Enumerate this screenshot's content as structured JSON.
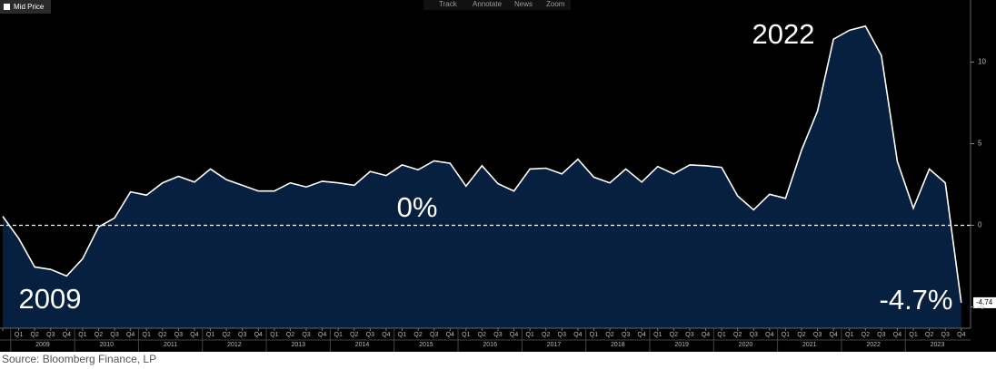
{
  "chart_data": {
    "type": "area",
    "legend": "Mid Price",
    "toolbar": [
      "Track",
      "Annotate",
      "News",
      "Zoom"
    ],
    "annotations": [
      {
        "text": "2022"
      },
      {
        "text": "0%"
      },
      {
        "text": "2009"
      },
      {
        "text": "-4.7%"
      }
    ],
    "source": "Source: Bloomberg Finance, LP",
    "categories": [
      null,
      "Q1",
      "Q2",
      "Q3",
      "Q4",
      "Q1",
      "Q2",
      "Q3",
      "Q4",
      "Q1",
      "Q2",
      "Q3",
      "Q4",
      "Q1",
      "Q2",
      "Q3",
      "Q4",
      "Q1",
      "Q2",
      "Q3",
      "Q4",
      "Q1",
      "Q2",
      "Q3",
      "Q4",
      "Q1",
      "Q2",
      "Q3",
      "Q4",
      "Q1",
      "Q2",
      "Q3",
      "Q4",
      "Q1",
      "Q2",
      "Q3",
      "Q4",
      "Q1",
      "Q2",
      "Q3",
      "Q4",
      "Q1",
      "Q2",
      "Q3",
      "Q4",
      "Q1",
      "Q2",
      "Q3",
      "Q4",
      "Q1",
      "Q2",
      "Q3",
      "Q4",
      "Q1",
      "Q2",
      "Q3",
      "Q4",
      "Q1",
      "Q2",
      "Q3",
      "Q4"
    ],
    "years": [
      "2009",
      "2010",
      "2011",
      "2012",
      "2013",
      "2014",
      "2015",
      "2016",
      "2017",
      "2018",
      "2019",
      "2020",
      "2021",
      "2022",
      "2023"
    ],
    "series": [
      {
        "name": "Mid Price",
        "color": "#ffffff",
        "fill": "#08203f",
        "values": [
          0.55,
          -0.8,
          -2.55,
          -2.7,
          -3.1,
          -2.05,
          -0.1,
          0.45,
          2.05,
          1.85,
          2.6,
          3.0,
          2.65,
          3.45,
          2.8,
          2.45,
          2.1,
          2.1,
          2.6,
          2.35,
          2.7,
          2.6,
          2.45,
          3.3,
          3.05,
          3.7,
          3.4,
          3.95,
          3.8,
          2.4,
          3.65,
          2.55,
          2.1,
          3.45,
          3.5,
          3.15,
          4.05,
          2.95,
          2.6,
          3.45,
          2.65,
          3.6,
          3.15,
          3.7,
          3.65,
          3.55,
          1.8,
          0.95,
          1.9,
          1.65,
          4.6,
          7.0,
          11.4,
          11.95,
          12.2,
          10.4,
          3.9,
          1.05,
          3.45,
          2.6,
          -4.74
        ]
      }
    ],
    "ylim": [
      -6.3,
      13.8
    ],
    "yticks": [
      -5,
      0,
      5,
      10
    ],
    "hline": 0,
    "grid": false
  }
}
